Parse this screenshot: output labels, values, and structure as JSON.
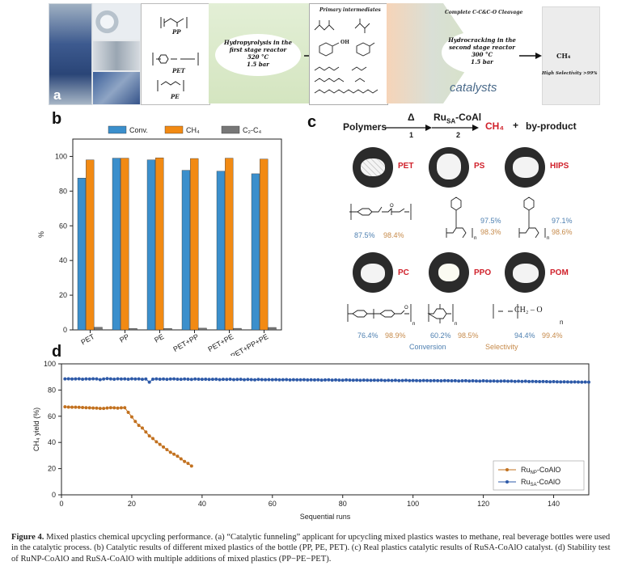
{
  "panel_a": {
    "letter": "a",
    "polymers": [
      "PP",
      "PET",
      "PE"
    ],
    "stage1_text": [
      "Hydropyrolysis in the",
      "first stage reactor",
      "520 °C",
      "1.5 bar"
    ],
    "intermediates_title": "Primary intermediates",
    "intermediate_oh": "OH",
    "cleavage_title": "Complete C-C&C-O Cleavage",
    "stage2_text": [
      "Hydrocracking in the",
      "second stage reactor",
      "300 °C",
      "1.5 bar"
    ],
    "catalysts_label": "catalysts",
    "product": "CH₄",
    "selectivity": "High Selectivity >99%"
  },
  "panel_b": {
    "letter": "b"
  },
  "panel_c": {
    "letter": "c",
    "scheme_polymers": "Polymers",
    "scheme_delta": "Δ",
    "scheme_step1": "1",
    "scheme_catalyst": "Ru",
    "scheme_catalyst_sub": "SA",
    "scheme_catalyst_rest": "-CoAl",
    "scheme_step2": "2",
    "scheme_ch4": "CH₄",
    "scheme_plus": "+",
    "scheme_byproduct": "by-product",
    "materials": [
      {
        "name": "PET",
        "conversion": "87.5%",
        "selectivity": "98.4%"
      },
      {
        "name": "PS",
        "conversion": "97.5%",
        "selectivity": "98.3%"
      },
      {
        "name": "HIPS",
        "conversion": "97.1%",
        "selectivity": "98.6%"
      },
      {
        "name": "PC",
        "conversion": "76.4%",
        "selectivity": "98.9%"
      },
      {
        "name": "PPO",
        "conversion": "60.2%",
        "selectivity": "98.5%"
      },
      {
        "name": "POM",
        "conversion": "94.4%",
        "selectivity": "99.4%"
      }
    ],
    "pom_formula": "CH₂ – O",
    "struct_n": "n",
    "struct_o": "O",
    "legend_conversion": "Conversion",
    "legend_selectivity": "Selectivity"
  },
  "panel_d": {
    "letter": "d"
  },
  "chart_data": [
    {
      "id": "b",
      "type": "bar",
      "title": "",
      "xlabel": "",
      "ylabel": "%",
      "ylim": [
        0,
        110
      ],
      "yticks": [
        0,
        20,
        40,
        60,
        80,
        100
      ],
      "categories": [
        "PET",
        "PP",
        "PE",
        "PET+PP",
        "PET+PE",
        "PET+PP+PE"
      ],
      "series": [
        {
          "name": "Conv.",
          "color": "#3b8fcc",
          "values": [
            87.5,
            99.0,
            98.0,
            92.0,
            91.5,
            90.0
          ]
        },
        {
          "name": "CH₄",
          "color": "#f28a13",
          "values": [
            98.0,
            99.0,
            99.2,
            98.8,
            99.0,
            98.5
          ]
        },
        {
          "name": "C₂-C₄",
          "color": "#777777",
          "values": [
            1.5,
            0.8,
            0.8,
            1.0,
            0.9,
            1.4
          ]
        }
      ],
      "legend": "top"
    },
    {
      "id": "d",
      "type": "scatter",
      "title": "",
      "xlabel": "Sequential runs",
      "ylabel": "CH₄ yield (%)",
      "xlim": [
        0,
        150
      ],
      "ylim": [
        0,
        100
      ],
      "xticks": [
        0,
        20,
        40,
        60,
        80,
        100,
        120,
        140
      ],
      "yticks": [
        0,
        20,
        40,
        60,
        80,
        100
      ],
      "legend": "bottom-right",
      "series": [
        {
          "name": "Ru",
          "name_sub": "NP",
          "name_rest": "-CoAlO",
          "color": "#c2711f",
          "x": [
            1,
            2,
            3,
            4,
            5,
            6,
            7,
            8,
            9,
            10,
            11,
            12,
            13,
            14,
            15,
            16,
            17,
            18,
            19,
            20,
            21,
            22,
            23,
            24,
            25,
            26,
            27,
            28,
            29,
            30,
            31,
            32,
            33,
            34,
            35,
            36,
            37
          ],
          "y": [
            67.2,
            67.0,
            66.9,
            66.9,
            66.8,
            66.7,
            66.5,
            66.4,
            66.3,
            66.2,
            66.0,
            66.0,
            66.3,
            66.5,
            66.4,
            66.2,
            66.4,
            66.5,
            63.0,
            59.5,
            56.0,
            53.0,
            51.0,
            48.0,
            45.0,
            43.0,
            40.5,
            38.5,
            36.5,
            34.5,
            32.5,
            31.0,
            29.5,
            27.5,
            25.5,
            24.0,
            22.0
          ]
        },
        {
          "name": "Ru",
          "name_sub": "SA",
          "name_rest": "-CoAlO",
          "color": "#2e5aa8",
          "x": [
            1,
            2,
            3,
            4,
            5,
            6,
            7,
            8,
            9,
            10,
            11,
            12,
            13,
            14,
            15,
            16,
            17,
            18,
            19,
            20,
            21,
            22,
            23,
            24,
            25,
            26,
            27,
            28,
            29,
            30,
            31,
            32,
            33,
            34,
            35,
            36,
            37,
            38,
            39,
            40,
            41,
            42,
            43,
            44,
            45,
            46,
            47,
            48,
            49,
            50,
            51,
            52,
            53,
            54,
            55,
            56,
            57,
            58,
            59,
            60,
            61,
            62,
            63,
            64,
            65,
            66,
            67,
            68,
            69,
            70,
            71,
            72,
            73,
            74,
            75,
            76,
            77,
            78,
            79,
            80,
            81,
            82,
            83,
            84,
            85,
            86,
            87,
            88,
            89,
            90,
            91,
            92,
            93,
            94,
            95,
            96,
            97,
            98,
            99,
            100,
            101,
            102,
            103,
            104,
            105,
            106,
            107,
            108,
            109,
            110,
            111,
            112,
            113,
            114,
            115,
            116,
            117,
            118,
            119,
            120,
            121,
            122,
            123,
            124,
            125,
            126,
            127,
            128,
            129,
            130,
            131,
            132,
            133,
            134,
            135,
            136,
            137,
            138,
            139,
            140,
            141,
            142,
            143,
            144,
            145,
            146,
            147,
            148,
            149,
            150
          ],
          "y": [
            88.5,
            88.6,
            88.4,
            88.5,
            88.6,
            88.3,
            88.5,
            88.4,
            88.6,
            88.5,
            88.0,
            88.4,
            88.7,
            88.5,
            88.3,
            88.6,
            88.4,
            88.5,
            88.3,
            88.6,
            88.4,
            88.5,
            88.2,
            88.4,
            86.0,
            88.3,
            88.5,
            88.3,
            88.4,
            88.2,
            88.4,
            88.5,
            88.3,
            88.2,
            88.4,
            88.3,
            88.1,
            88.4,
            88.3,
            88.2,
            88.3,
            88.1,
            88.2,
            88.3,
            88.0,
            88.2,
            88.1,
            88.3,
            88.0,
            88.1,
            88.2,
            87.9,
            88.1,
            88.0,
            87.8,
            88.1,
            88.0,
            87.9,
            88.0,
            87.9,
            88.0,
            87.8,
            87.9,
            88.0,
            87.7,
            87.9,
            87.8,
            87.8,
            87.9,
            87.7,
            87.8,
            87.7,
            87.8,
            87.6,
            87.7,
            87.8,
            87.6,
            87.7,
            87.6,
            87.5,
            87.7,
            87.6,
            87.5,
            87.6,
            87.4,
            87.6,
            87.5,
            87.4,
            87.5,
            87.4,
            87.5,
            87.3,
            87.4,
            87.3,
            87.4,
            87.2,
            87.3,
            87.4,
            87.2,
            87.3,
            87.2,
            87.1,
            87.3,
            87.2,
            87.1,
            87.2,
            87.1,
            87.0,
            87.2,
            87.1,
            87.0,
            87.1,
            86.9,
            87.0,
            87.1,
            86.9,
            87.0,
            86.9,
            86.8,
            87.0,
            86.9,
            86.8,
            86.9,
            86.7,
            86.8,
            86.9,
            86.7,
            86.8,
            86.6,
            86.7,
            86.6,
            86.7,
            86.5,
            86.6,
            86.5,
            86.4,
            86.5,
            86.4,
            86.3,
            86.4,
            86.3,
            86.2,
            86.3,
            86.2,
            86.1,
            86.2,
            86.1,
            86.0,
            86.1,
            86.0
          ]
        }
      ]
    }
  ],
  "caption": {
    "label": "Figure 4.",
    "text": " Mixed plastics chemical upcycling performance. (a) “Catalytic funneling” applicant for upcycling mixed plastics wastes to methane, real beverage bottles were used in the catalytic process. (b) Catalytic results of different mixed plastics of the bottle (PP, PE, PET). (c) Real plastics catalytic results of RuSA-CoAlO catalyst. (d) Stability test of RuNP-CoAlO and RuSA-CoAlO with multiple additions of mixed plastics (PP−PE−PET)."
  }
}
